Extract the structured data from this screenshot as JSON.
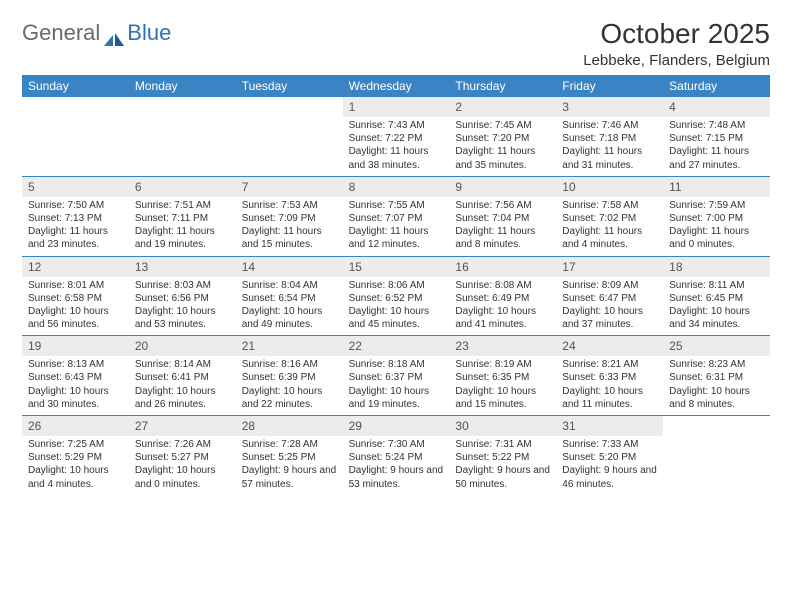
{
  "brand": {
    "part1": "General",
    "part2": "Blue",
    "text_color": "#6a6a6a",
    "accent_color": "#2d73b8"
  },
  "title": "October 2025",
  "location": "Lebbeke, Flanders, Belgium",
  "colors": {
    "header_bg": "#3b84c4",
    "header_text": "#ffffff",
    "daynum_bg": "#ececec",
    "border": "#3b84c4",
    "text": "#333333"
  },
  "day_headers": [
    "Sunday",
    "Monday",
    "Tuesday",
    "Wednesday",
    "Thursday",
    "Friday",
    "Saturday"
  ],
  "weeks": [
    [
      {
        "num": "",
        "empty": true
      },
      {
        "num": "",
        "empty": true
      },
      {
        "num": "",
        "empty": true
      },
      {
        "num": "1",
        "sunrise": "Sunrise: 7:43 AM",
        "sunset": "Sunset: 7:22 PM",
        "daylight": "Daylight: 11 hours and 38 minutes."
      },
      {
        "num": "2",
        "sunrise": "Sunrise: 7:45 AM",
        "sunset": "Sunset: 7:20 PM",
        "daylight": "Daylight: 11 hours and 35 minutes."
      },
      {
        "num": "3",
        "sunrise": "Sunrise: 7:46 AM",
        "sunset": "Sunset: 7:18 PM",
        "daylight": "Daylight: 11 hours and 31 minutes."
      },
      {
        "num": "4",
        "sunrise": "Sunrise: 7:48 AM",
        "sunset": "Sunset: 7:15 PM",
        "daylight": "Daylight: 11 hours and 27 minutes."
      }
    ],
    [
      {
        "num": "5",
        "sunrise": "Sunrise: 7:50 AM",
        "sunset": "Sunset: 7:13 PM",
        "daylight": "Daylight: 11 hours and 23 minutes."
      },
      {
        "num": "6",
        "sunrise": "Sunrise: 7:51 AM",
        "sunset": "Sunset: 7:11 PM",
        "daylight": "Daylight: 11 hours and 19 minutes."
      },
      {
        "num": "7",
        "sunrise": "Sunrise: 7:53 AM",
        "sunset": "Sunset: 7:09 PM",
        "daylight": "Daylight: 11 hours and 15 minutes."
      },
      {
        "num": "8",
        "sunrise": "Sunrise: 7:55 AM",
        "sunset": "Sunset: 7:07 PM",
        "daylight": "Daylight: 11 hours and 12 minutes."
      },
      {
        "num": "9",
        "sunrise": "Sunrise: 7:56 AM",
        "sunset": "Sunset: 7:04 PM",
        "daylight": "Daylight: 11 hours and 8 minutes."
      },
      {
        "num": "10",
        "sunrise": "Sunrise: 7:58 AM",
        "sunset": "Sunset: 7:02 PM",
        "daylight": "Daylight: 11 hours and 4 minutes."
      },
      {
        "num": "11",
        "sunrise": "Sunrise: 7:59 AM",
        "sunset": "Sunset: 7:00 PM",
        "daylight": "Daylight: 11 hours and 0 minutes."
      }
    ],
    [
      {
        "num": "12",
        "sunrise": "Sunrise: 8:01 AM",
        "sunset": "Sunset: 6:58 PM",
        "daylight": "Daylight: 10 hours and 56 minutes."
      },
      {
        "num": "13",
        "sunrise": "Sunrise: 8:03 AM",
        "sunset": "Sunset: 6:56 PM",
        "daylight": "Daylight: 10 hours and 53 minutes."
      },
      {
        "num": "14",
        "sunrise": "Sunrise: 8:04 AM",
        "sunset": "Sunset: 6:54 PM",
        "daylight": "Daylight: 10 hours and 49 minutes."
      },
      {
        "num": "15",
        "sunrise": "Sunrise: 8:06 AM",
        "sunset": "Sunset: 6:52 PM",
        "daylight": "Daylight: 10 hours and 45 minutes."
      },
      {
        "num": "16",
        "sunrise": "Sunrise: 8:08 AM",
        "sunset": "Sunset: 6:49 PM",
        "daylight": "Daylight: 10 hours and 41 minutes."
      },
      {
        "num": "17",
        "sunrise": "Sunrise: 8:09 AM",
        "sunset": "Sunset: 6:47 PM",
        "daylight": "Daylight: 10 hours and 37 minutes."
      },
      {
        "num": "18",
        "sunrise": "Sunrise: 8:11 AM",
        "sunset": "Sunset: 6:45 PM",
        "daylight": "Daylight: 10 hours and 34 minutes."
      }
    ],
    [
      {
        "num": "19",
        "sunrise": "Sunrise: 8:13 AM",
        "sunset": "Sunset: 6:43 PM",
        "daylight": "Daylight: 10 hours and 30 minutes."
      },
      {
        "num": "20",
        "sunrise": "Sunrise: 8:14 AM",
        "sunset": "Sunset: 6:41 PM",
        "daylight": "Daylight: 10 hours and 26 minutes."
      },
      {
        "num": "21",
        "sunrise": "Sunrise: 8:16 AM",
        "sunset": "Sunset: 6:39 PM",
        "daylight": "Daylight: 10 hours and 22 minutes."
      },
      {
        "num": "22",
        "sunrise": "Sunrise: 8:18 AM",
        "sunset": "Sunset: 6:37 PM",
        "daylight": "Daylight: 10 hours and 19 minutes."
      },
      {
        "num": "23",
        "sunrise": "Sunrise: 8:19 AM",
        "sunset": "Sunset: 6:35 PM",
        "daylight": "Daylight: 10 hours and 15 minutes."
      },
      {
        "num": "24",
        "sunrise": "Sunrise: 8:21 AM",
        "sunset": "Sunset: 6:33 PM",
        "daylight": "Daylight: 10 hours and 11 minutes."
      },
      {
        "num": "25",
        "sunrise": "Sunrise: 8:23 AM",
        "sunset": "Sunset: 6:31 PM",
        "daylight": "Daylight: 10 hours and 8 minutes."
      }
    ],
    [
      {
        "num": "26",
        "sunrise": "Sunrise: 7:25 AM",
        "sunset": "Sunset: 5:29 PM",
        "daylight": "Daylight: 10 hours and 4 minutes."
      },
      {
        "num": "27",
        "sunrise": "Sunrise: 7:26 AM",
        "sunset": "Sunset: 5:27 PM",
        "daylight": "Daylight: 10 hours and 0 minutes."
      },
      {
        "num": "28",
        "sunrise": "Sunrise: 7:28 AM",
        "sunset": "Sunset: 5:25 PM",
        "daylight": "Daylight: 9 hours and 57 minutes."
      },
      {
        "num": "29",
        "sunrise": "Sunrise: 7:30 AM",
        "sunset": "Sunset: 5:24 PM",
        "daylight": "Daylight: 9 hours and 53 minutes."
      },
      {
        "num": "30",
        "sunrise": "Sunrise: 7:31 AM",
        "sunset": "Sunset: 5:22 PM",
        "daylight": "Daylight: 9 hours and 50 minutes."
      },
      {
        "num": "31",
        "sunrise": "Sunrise: 7:33 AM",
        "sunset": "Sunset: 5:20 PM",
        "daylight": "Daylight: 9 hours and 46 minutes."
      },
      {
        "num": "",
        "empty": true
      }
    ]
  ]
}
